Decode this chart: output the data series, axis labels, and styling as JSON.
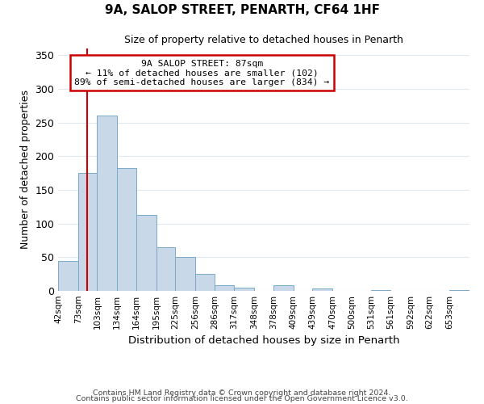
{
  "title": "9A, SALOP STREET, PENARTH, CF64 1HF",
  "subtitle": "Size of property relative to detached houses in Penarth",
  "xlabel": "Distribution of detached houses by size in Penarth",
  "ylabel": "Number of detached properties",
  "bin_labels": [
    "42sqm",
    "73sqm",
    "103sqm",
    "134sqm",
    "164sqm",
    "195sqm",
    "225sqm",
    "256sqm",
    "286sqm",
    "317sqm",
    "348sqm",
    "378sqm",
    "409sqm",
    "439sqm",
    "470sqm",
    "500sqm",
    "531sqm",
    "561sqm",
    "592sqm",
    "622sqm",
    "653sqm"
  ],
  "bin_edges": [
    42,
    73,
    103,
    134,
    164,
    195,
    225,
    256,
    286,
    317,
    348,
    378,
    409,
    439,
    470,
    500,
    531,
    561,
    592,
    622,
    653
  ],
  "bar_heights": [
    45,
    175,
    260,
    183,
    113,
    65,
    50,
    25,
    8,
    5,
    0,
    9,
    0,
    4,
    0,
    0,
    1,
    0,
    0,
    0,
    1
  ],
  "bar_color": "#c8d8e8",
  "bar_edge_color": "#7aaac8",
  "red_line_x": 87,
  "annotation_title": "9A SALOP STREET: 87sqm",
  "annotation_line1": "← 11% of detached houses are smaller (102)",
  "annotation_line2": "89% of semi-detached houses are larger (834) →",
  "annotation_box_color": "#ffffff",
  "annotation_box_edge": "#cc0000",
  "red_line_color": "#cc0000",
  "ylim": [
    0,
    360
  ],
  "yticks": [
    0,
    50,
    100,
    150,
    200,
    250,
    300,
    350
  ],
  "footer1": "Contains HM Land Registry data © Crown copyright and database right 2024.",
  "footer2": "Contains public sector information licensed under the Open Government Licence v3.0.",
  "background_color": "#ffffff",
  "grid_color": "#dde8f0"
}
